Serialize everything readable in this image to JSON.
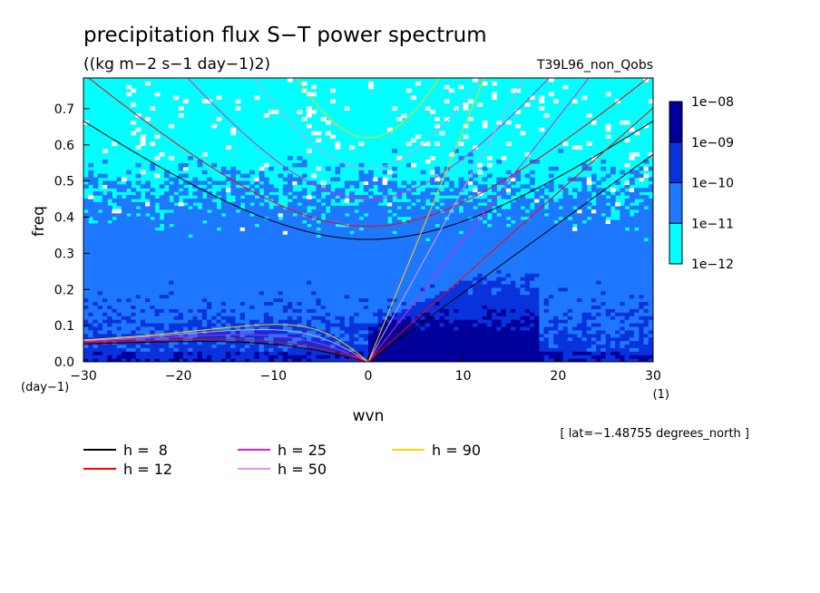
{
  "chart_data": {
    "type": "heatmap",
    "title": "precipitation flux S−T power spectrum",
    "subtitle": "((kg m−2 s−1 day−1)2)",
    "dataset_label": "T39L96_non_Qobs",
    "xlabel": "wvn",
    "ylabel": "freq",
    "x_unit": "(1)",
    "y_unit": "(day−1)",
    "xlim": [
      -30,
      30
    ],
    "ylim": [
      0,
      0.785
    ],
    "x_ticks": [
      -30,
      -20,
      -10,
      0,
      10,
      20,
      30
    ],
    "x_tick_labels": [
      "−30",
      "−20",
      "−10",
      "0",
      "10",
      "20",
      "30"
    ],
    "y_ticks": [
      0,
      0.1,
      0.2,
      0.3,
      0.4,
      0.5,
      0.6,
      0.7
    ],
    "y_tick_labels": [
      "0.0",
      "0.1",
      "0.2",
      "0.3",
      "0.4",
      "0.5",
      "0.6",
      "0.7"
    ],
    "footnote": "[ lat=−1.48755 degrees_north ]",
    "colorbar": {
      "levels": [
        "1e−12",
        "1e−11",
        "1e−10",
        "1e−09",
        "1e−08"
      ],
      "colors": [
        "#00ffff",
        "#1e78ff",
        "#0a32dc",
        "#00009a",
        "#46129a"
      ]
    },
    "dispersion_curves": [
      {
        "label": "h =  8",
        "h": 8,
        "color": "#000000"
      },
      {
        "label": "h = 12",
        "h": 12,
        "color": "#ff0000"
      },
      {
        "label": "h = 25",
        "h": 25,
        "color": "#e61ec8"
      },
      {
        "label": "h = 50",
        "h": 50,
        "color": "#d79bdc"
      },
      {
        "label": "h = 90",
        "h": 90,
        "color": "#ffd200"
      }
    ],
    "grid": false,
    "legend_placement": "bottom-left"
  }
}
